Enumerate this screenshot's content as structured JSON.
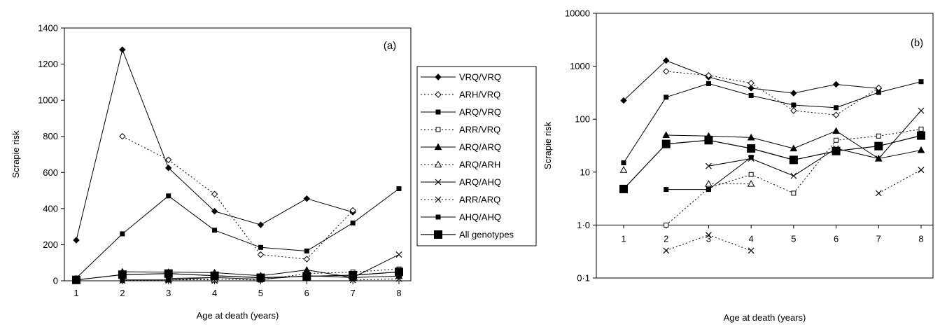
{
  "chart_data": [
    {
      "panel": "(a)",
      "type": "line",
      "xlabel": "Age at death (years)",
      "ylabel": "Scrapie risk",
      "xlim": [
        1,
        8
      ],
      "ylim": [
        0,
        1400
      ],
      "yscale": "linear",
      "x_ticks": [
        "1",
        "2",
        "3",
        "4",
        "5",
        "6",
        "7",
        "8"
      ],
      "y_ticks": [
        "0",
        "200",
        "400",
        "600",
        "800",
        "1000",
        "1200",
        "1400"
      ],
      "grid": false,
      "legend": "right",
      "x": [
        1,
        2,
        3,
        4,
        5,
        6,
        7,
        8
      ],
      "series": [
        {
          "name": "VRQ/VRQ",
          "values": [
            225,
            1280,
            625,
            385,
            310,
            455,
            380,
            null
          ]
        },
        {
          "name": "ARH/VRQ",
          "values": [
            null,
            800,
            670,
            480,
            145,
            120,
            390,
            null
          ]
        },
        {
          "name": "ARQ/VRQ",
          "values": [
            15,
            260,
            470,
            280,
            185,
            165,
            320,
            510
          ]
        },
        {
          "name": "ARR/VRQ",
          "values": [
            null,
            1,
            5,
            9,
            4,
            40,
            48,
            65
          ]
        },
        {
          "name": "ARQ/ARQ",
          "values": [
            null,
            50,
            48,
            45,
            28,
            60,
            18,
            26
          ]
        },
        {
          "name": "ARQ/ARH",
          "values": [
            11,
            null,
            6,
            6,
            null,
            null,
            null,
            null
          ]
        },
        {
          "name": "ARQ/AHQ",
          "values": [
            null,
            null,
            13,
            18,
            8.5,
            28,
            18,
            145
          ]
        },
        {
          "name": "ARR/ARQ",
          "values": [
            null,
            0.33,
            0.65,
            0.33,
            null,
            null,
            4,
            11
          ]
        },
        {
          "name": "AHQ/AHQ",
          "values": [
            null,
            4.7,
            4.7,
            19,
            null,
            null,
            null,
            null
          ]
        },
        {
          "name": "All genotypes",
          "values": [
            4.8,
            34,
            40,
            28,
            17,
            25,
            31,
            49
          ]
        }
      ]
    },
    {
      "panel": "(b)",
      "type": "line",
      "xlabel": "Age at death (years)",
      "ylabel": "Scrapie risk",
      "xlim": [
        1,
        8
      ],
      "ylim": [
        0.1,
        10000
      ],
      "yscale": "log",
      "x_ticks": [
        "1",
        "2",
        "3",
        "4",
        "5",
        "6",
        "7",
        "8"
      ],
      "y_ticks": [
        "0·1",
        "1·0",
        "10",
        "100",
        "1000",
        "10000"
      ],
      "grid": false,
      "x_axis_crosses_at": 1,
      "x": [
        1,
        2,
        3,
        4,
        5,
        6,
        7,
        8
      ],
      "series_same_as_panel": "(a)"
    }
  ]
}
